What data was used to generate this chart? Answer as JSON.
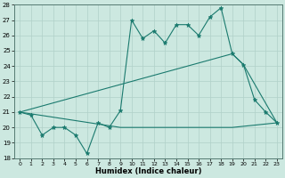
{
  "xlabel": "Humidex (Indice chaleur)",
  "bg_color": "#cce8e0",
  "line_color": "#1a7a6e",
  "grid_color": "#b0d0c8",
  "xlim": [
    -0.5,
    23.5
  ],
  "ylim": [
    18,
    28
  ],
  "yticks": [
    18,
    19,
    20,
    21,
    22,
    23,
    24,
    25,
    26,
    27,
    28
  ],
  "xticks": [
    0,
    1,
    2,
    3,
    4,
    5,
    6,
    7,
    8,
    9,
    10,
    11,
    12,
    13,
    14,
    15,
    16,
    17,
    18,
    19,
    20,
    21,
    22,
    23
  ],
  "series1_x": [
    0,
    1,
    2,
    3,
    4,
    5,
    6,
    7,
    8,
    9,
    10,
    11,
    12,
    13,
    14,
    15,
    16,
    17,
    18,
    19,
    20,
    21,
    22,
    23
  ],
  "series1_y": [
    21.0,
    20.8,
    19.5,
    20.0,
    20.0,
    19.5,
    18.3,
    20.3,
    20.0,
    21.1,
    27.0,
    25.8,
    26.3,
    25.5,
    26.7,
    26.7,
    26.0,
    27.2,
    27.8,
    24.8,
    24.1,
    21.8,
    21.0,
    20.3
  ],
  "series2_x": [
    0,
    19,
    20,
    23
  ],
  "series2_y": [
    21.0,
    24.8,
    24.1,
    20.3
  ],
  "series3_x": [
    0,
    9,
    19,
    23
  ],
  "series3_y": [
    21.0,
    20.0,
    20.0,
    20.3
  ]
}
